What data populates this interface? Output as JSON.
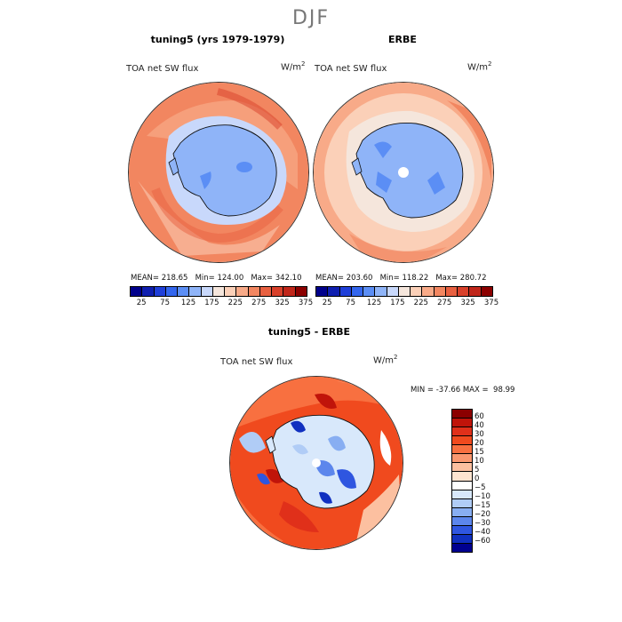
{
  "figure": {
    "title": "DJF",
    "bottom_title": "tuning5 - ERBE"
  },
  "chart_data": [
    {
      "type": "heatmap",
      "title": "tuning5 (yrs 1979-1979)",
      "variable": "TOA net SW flux",
      "units": "W/m",
      "units_exp": "2",
      "stats": {
        "mean_label": "MEAN=",
        "mean": "218.65",
        "min_label": "Min=",
        "min": "124.00",
        "max_label": "Max=",
        "max": "342.10"
      },
      "levels": [
        "25",
        "75",
        "125",
        "175",
        "225",
        "275",
        "325",
        "375"
      ],
      "colors": [
        "#00008b",
        "#0f1fb0",
        "#1f3fd9",
        "#3366ee",
        "#5b8ef5",
        "#8fb4f8",
        "#c8d8fb",
        "#f5e6dc",
        "#fbd0b8",
        "#f8aa88",
        "#f28660",
        "#e86040",
        "#d8402a",
        "#c0261a",
        "#8b0000"
      ]
    },
    {
      "type": "heatmap",
      "title": "ERBE",
      "variable": "TOA net SW flux",
      "units": "W/m",
      "units_exp": "2",
      "stats": {
        "mean_label": "MEAN=",
        "mean": "203.60",
        "min_label": "Min=",
        "min": "118.22",
        "max_label": "Max=",
        "max": "280.72"
      },
      "levels": [
        "25",
        "75",
        "125",
        "175",
        "225",
        "275",
        "325",
        "375"
      ],
      "colors": [
        "#00008b",
        "#0f1fb0",
        "#1f3fd9",
        "#3366ee",
        "#5b8ef5",
        "#8fb4f8",
        "#c8d8fb",
        "#f5e6dc",
        "#fbd0b8",
        "#f8aa88",
        "#f28660",
        "#e86040",
        "#d8402a",
        "#c0261a",
        "#8b0000"
      ]
    },
    {
      "type": "heatmap",
      "title": "tuning5 - ERBE",
      "variable": "TOA net SW flux",
      "units": "W/m",
      "units_exp": "2",
      "stats": {
        "min_label": "MIN =",
        "min": "-37.66",
        "max_label": "MAX =",
        "max": "98.99"
      },
      "levels": [
        "60",
        "40",
        "30",
        "20",
        "15",
        "10",
        "5",
        "0",
        "−5",
        "−10",
        "−15",
        "−20",
        "−30",
        "−40",
        "−60"
      ],
      "colors": [
        "#8b0000",
        "#c0140a",
        "#e0301a",
        "#f04a1e",
        "#f87040",
        "#fa9870",
        "#fcc0a0",
        "#fde4d0",
        "#ffffff",
        "#d8e8fb",
        "#b0ccf6",
        "#88aef2",
        "#5c86ec",
        "#2f56e0",
        "#1030c0",
        "#000090"
      ]
    }
  ]
}
